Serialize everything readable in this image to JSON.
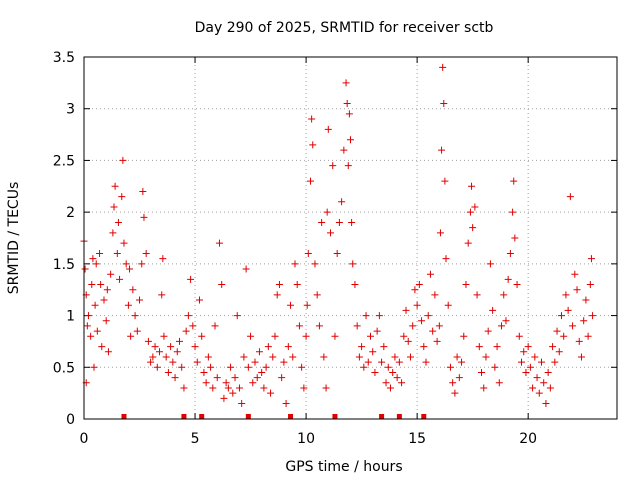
{
  "chart_data": {
    "type": "scatter",
    "title": "Day 290 of 2025, SRMTID for receiver sctb",
    "xlabel": "GPS time / hours",
    "ylabel": "SRMTID / TECUs",
    "xlim": [
      0,
      24
    ],
    "ylim": [
      0,
      3.5
    ],
    "x_ticks": [
      0,
      5,
      10,
      15,
      20
    ],
    "x_tick_labels": [
      "0",
      "5",
      "10",
      "15",
      "20"
    ],
    "y_ticks": [
      0,
      0.5,
      1,
      1.5,
      2,
      2.5,
      3,
      3.5
    ],
    "y_tick_labels": [
      "0",
      "0.5",
      "1",
      "1.5",
      "2",
      "2.5",
      "3",
      "3.5"
    ],
    "grid": true,
    "marker": "+",
    "color": "#e00000",
    "series": [
      {
        "name": "SRMTID",
        "points": [
          [
            0.0,
            1.72
          ],
          [
            0.05,
            1.45
          ],
          [
            0.1,
            1.2
          ],
          [
            0.1,
            0.35
          ],
          [
            0.15,
            0.9
          ],
          [
            0.2,
            1.0
          ],
          [
            0.3,
            0.8
          ],
          [
            0.35,
            1.3
          ],
          [
            0.4,
            1.55
          ],
          [
            0.45,
            0.5
          ],
          [
            0.5,
            1.1
          ],
          [
            0.55,
            1.5
          ],
          [
            0.6,
            0.85
          ],
          [
            0.7,
            1.6
          ],
          [
            0.75,
            1.3
          ],
          [
            0.8,
            0.7
          ],
          [
            0.9,
            1.15
          ],
          [
            1.0,
            0.95
          ],
          [
            1.05,
            1.25
          ],
          [
            1.1,
            0.65
          ],
          [
            1.2,
            1.4
          ],
          [
            1.3,
            1.8
          ],
          [
            1.35,
            2.05
          ],
          [
            1.4,
            2.25
          ],
          [
            1.5,
            1.6
          ],
          [
            1.55,
            1.9
          ],
          [
            1.6,
            1.35
          ],
          [
            1.7,
            2.15
          ],
          [
            1.75,
            2.5
          ],
          [
            1.8,
            1.7
          ],
          [
            1.9,
            1.5
          ],
          [
            2.0,
            1.1
          ],
          [
            2.05,
            1.45
          ],
          [
            2.1,
            0.8
          ],
          [
            2.2,
            1.25
          ],
          [
            2.3,
            1.0
          ],
          [
            2.4,
            0.85
          ],
          [
            2.5,
            1.15
          ],
          [
            2.6,
            1.5
          ],
          [
            2.65,
            2.2
          ],
          [
            2.7,
            1.95
          ],
          [
            2.8,
            1.6
          ],
          [
            2.9,
            0.75
          ],
          [
            3.0,
            0.55
          ],
          [
            3.1,
            0.6
          ],
          [
            3.2,
            0.7
          ],
          [
            3.3,
            0.5
          ],
          [
            3.4,
            0.65
          ],
          [
            3.5,
            1.2
          ],
          [
            3.55,
            1.55
          ],
          [
            3.6,
            0.8
          ],
          [
            3.7,
            0.6
          ],
          [
            3.8,
            0.45
          ],
          [
            3.9,
            0.7
          ],
          [
            4.0,
            0.55
          ],
          [
            4.1,
            0.4
          ],
          [
            4.2,
            0.65
          ],
          [
            4.3,
            0.75
          ],
          [
            4.4,
            0.5
          ],
          [
            4.5,
            0.3
          ],
          [
            4.6,
            0.85
          ],
          [
            4.7,
            1.0
          ],
          [
            4.8,
            1.35
          ],
          [
            4.9,
            0.9
          ],
          [
            5.0,
            0.7
          ],
          [
            5.1,
            0.55
          ],
          [
            5.2,
            1.15
          ],
          [
            5.3,
            0.8
          ],
          [
            5.4,
            0.45
          ],
          [
            5.5,
            0.35
          ],
          [
            5.6,
            0.6
          ],
          [
            5.7,
            0.5
          ],
          [
            5.8,
            0.3
          ],
          [
            5.9,
            0.9
          ],
          [
            6.0,
            0.4
          ],
          [
            6.1,
            1.7
          ],
          [
            6.2,
            1.3
          ],
          [
            6.3,
            0.2
          ],
          [
            6.4,
            0.35
          ],
          [
            6.5,
            0.3
          ],
          [
            6.6,
            0.5
          ],
          [
            6.7,
            0.25
          ],
          [
            6.8,
            0.4
          ],
          [
            6.9,
            1.0
          ],
          [
            7.0,
            0.3
          ],
          [
            7.1,
            0.15
          ],
          [
            7.2,
            0.6
          ],
          [
            7.3,
            1.45
          ],
          [
            7.4,
            0.5
          ],
          [
            7.5,
            0.8
          ],
          [
            7.6,
            0.35
          ],
          [
            7.7,
            0.55
          ],
          [
            7.8,
            0.4
          ],
          [
            7.9,
            0.65
          ],
          [
            8.0,
            0.45
          ],
          [
            8.1,
            0.3
          ],
          [
            8.2,
            0.5
          ],
          [
            8.3,
            0.7
          ],
          [
            8.4,
            0.25
          ],
          [
            8.5,
            0.6
          ],
          [
            8.6,
            0.8
          ],
          [
            8.7,
            1.2
          ],
          [
            8.8,
            1.3
          ],
          [
            8.9,
            0.4
          ],
          [
            9.0,
            0.55
          ],
          [
            9.1,
            0.15
          ],
          [
            9.2,
            0.7
          ],
          [
            9.3,
            1.1
          ],
          [
            9.4,
            0.6
          ],
          [
            9.5,
            1.5
          ],
          [
            9.6,
            1.3
          ],
          [
            9.7,
            0.9
          ],
          [
            9.8,
            0.5
          ],
          [
            9.9,
            0.3
          ],
          [
            10.0,
            0.8
          ],
          [
            10.05,
            1.1
          ],
          [
            10.1,
            1.6
          ],
          [
            10.2,
            2.3
          ],
          [
            10.25,
            2.9
          ],
          [
            10.3,
            2.65
          ],
          [
            10.4,
            1.5
          ],
          [
            10.5,
            1.2
          ],
          [
            10.6,
            0.9
          ],
          [
            10.7,
            1.9
          ],
          [
            10.8,
            0.6
          ],
          [
            10.9,
            0.3
          ],
          [
            10.95,
            2.0
          ],
          [
            11.0,
            2.8
          ],
          [
            11.1,
            1.8
          ],
          [
            11.2,
            2.45
          ],
          [
            11.3,
            0.8
          ],
          [
            11.4,
            1.6
          ],
          [
            11.5,
            1.9
          ],
          [
            11.6,
            2.1
          ],
          [
            11.7,
            2.6
          ],
          [
            11.8,
            3.25
          ],
          [
            11.85,
            3.05
          ],
          [
            11.9,
            2.45
          ],
          [
            11.95,
            2.95
          ],
          [
            12.0,
            2.7
          ],
          [
            12.05,
            1.9
          ],
          [
            12.1,
            1.5
          ],
          [
            12.2,
            1.3
          ],
          [
            12.3,
            0.9
          ],
          [
            12.4,
            0.6
          ],
          [
            12.5,
            0.7
          ],
          [
            12.6,
            0.5
          ],
          [
            12.7,
            1.0
          ],
          [
            12.8,
            0.55
          ],
          [
            12.9,
            0.8
          ],
          [
            13.0,
            0.65
          ],
          [
            13.1,
            0.45
          ],
          [
            13.2,
            0.85
          ],
          [
            13.3,
            1.0
          ],
          [
            13.4,
            0.55
          ],
          [
            13.5,
            0.7
          ],
          [
            13.6,
            0.35
          ],
          [
            13.7,
            0.5
          ],
          [
            13.8,
            0.3
          ],
          [
            13.9,
            0.45
          ],
          [
            14.0,
            0.6
          ],
          [
            14.1,
            0.4
          ],
          [
            14.2,
            0.55
          ],
          [
            14.3,
            0.35
          ],
          [
            14.4,
            0.8
          ],
          [
            14.5,
            1.05
          ],
          [
            14.6,
            0.75
          ],
          [
            14.7,
            0.6
          ],
          [
            14.8,
            0.9
          ],
          [
            14.9,
            1.25
          ],
          [
            15.0,
            1.1
          ],
          [
            15.1,
            1.3
          ],
          [
            15.2,
            0.95
          ],
          [
            15.3,
            0.7
          ],
          [
            15.4,
            0.55
          ],
          [
            15.5,
            1.0
          ],
          [
            15.6,
            1.4
          ],
          [
            15.7,
            0.85
          ],
          [
            15.8,
            1.2
          ],
          [
            15.9,
            0.75
          ],
          [
            16.0,
            0.9
          ],
          [
            16.05,
            1.8
          ],
          [
            16.1,
            2.6
          ],
          [
            16.15,
            3.4
          ],
          [
            16.2,
            3.05
          ],
          [
            16.25,
            2.3
          ],
          [
            16.3,
            1.55
          ],
          [
            16.4,
            1.1
          ],
          [
            16.5,
            0.5
          ],
          [
            16.6,
            0.35
          ],
          [
            16.7,
            0.25
          ],
          [
            16.8,
            0.6
          ],
          [
            16.9,
            0.4
          ],
          [
            17.0,
            0.55
          ],
          [
            17.1,
            0.8
          ],
          [
            17.2,
            1.3
          ],
          [
            17.3,
            1.7
          ],
          [
            17.4,
            2.0
          ],
          [
            17.45,
            2.25
          ],
          [
            17.5,
            1.85
          ],
          [
            17.6,
            2.05
          ],
          [
            17.7,
            1.2
          ],
          [
            17.8,
            0.7
          ],
          [
            17.9,
            0.45
          ],
          [
            18.0,
            0.3
          ],
          [
            18.1,
            0.6
          ],
          [
            18.2,
            0.85
          ],
          [
            18.3,
            1.5
          ],
          [
            18.4,
            1.05
          ],
          [
            18.5,
            0.5
          ],
          [
            18.6,
            0.7
          ],
          [
            18.7,
            0.35
          ],
          [
            18.8,
            0.9
          ],
          [
            18.9,
            1.2
          ],
          [
            19.0,
            0.95
          ],
          [
            19.1,
            1.35
          ],
          [
            19.2,
            1.6
          ],
          [
            19.3,
            2.0
          ],
          [
            19.35,
            2.3
          ],
          [
            19.4,
            1.75
          ],
          [
            19.5,
            1.3
          ],
          [
            19.6,
            0.8
          ],
          [
            19.7,
            0.55
          ],
          [
            19.8,
            0.65
          ],
          [
            19.9,
            0.45
          ],
          [
            20.0,
            0.7
          ],
          [
            20.1,
            0.5
          ],
          [
            20.2,
            0.3
          ],
          [
            20.3,
            0.6
          ],
          [
            20.4,
            0.4
          ],
          [
            20.5,
            0.25
          ],
          [
            20.6,
            0.55
          ],
          [
            20.7,
            0.35
          ],
          [
            20.8,
            0.15
          ],
          [
            20.9,
            0.45
          ],
          [
            21.0,
            0.3
          ],
          [
            21.1,
            0.7
          ],
          [
            21.2,
            0.55
          ],
          [
            21.3,
            0.85
          ],
          [
            21.4,
            0.65
          ],
          [
            21.5,
            1.0
          ],
          [
            21.6,
            0.8
          ],
          [
            21.7,
            1.2
          ],
          [
            21.8,
            1.05
          ],
          [
            21.9,
            2.15
          ],
          [
            22.0,
            0.9
          ],
          [
            22.1,
            1.4
          ],
          [
            22.2,
            1.25
          ],
          [
            22.3,
            0.75
          ],
          [
            22.4,
            0.6
          ],
          [
            22.5,
            0.95
          ],
          [
            22.6,
            1.15
          ],
          [
            22.7,
            0.8
          ],
          [
            22.8,
            1.3
          ],
          [
            22.85,
            1.55
          ],
          [
            22.9,
            1.0
          ]
        ]
      }
    ],
    "gap_markers_x": [
      1.8,
      4.5,
      5.3,
      7.4,
      9.3,
      11.3,
      13.4,
      14.2,
      15.3
    ]
  }
}
